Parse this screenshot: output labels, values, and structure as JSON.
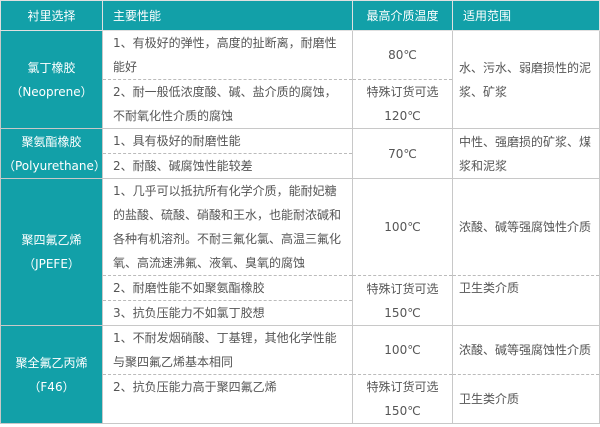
{
  "headers": [
    "衬里选择",
    "主要性能",
    "最高介质温度",
    "适用范围"
  ],
  "rows": [
    {
      "name": "氯丁橡胶",
      "code": "（Neoprene）",
      "props": [
        "1、有极好的弹性，高度的扯断离，耐磨性能好",
        "2、耐一般低浓度酸、碱、盐介质的腐蚀，不耐氧化性介质的腐蚀"
      ],
      "temp": [
        "80℃",
        "特殊订货可选",
        "120℃"
      ],
      "use": [
        "水、污水、弱磨损性的泥浆、矿浆"
      ]
    },
    {
      "name": "聚氨酯橡胶",
      "code": "（Polyurethane）",
      "props": [
        "1、具有极好的耐磨性能",
        "2、耐酸、碱腐蚀性能较差"
      ],
      "temp": [
        "70℃"
      ],
      "use": [
        "中性、强磨损的矿浆、煤浆和泥浆"
      ]
    },
    {
      "name": "聚四氟乙烯",
      "code": "（JPEFE）",
      "props": [
        "1、几乎可以抵抗所有化学介质，能耐妃糖的盐酸、硫酸、硝酸和王水，也能耐浓碱和各种有机溶剂。不耐三氟化氯、高温三氟化氧、高流速沸氟、液氧、臭氧的腐蚀",
        "2、耐磨性能不如聚氨酯橡胶",
        "3、抗负压能力不如氯丁胶想"
      ],
      "temp": [
        "100℃",
        "特殊订货可选",
        "150℃"
      ],
      "use": [
        "浓酸、碱等强腐蚀性介质",
        "卫生类介质"
      ]
    },
    {
      "name": "聚全氟乙丙烯",
      "code": "（F46）",
      "props": [
        "1、不耐发烟硝酸、丁基锂，其他化学性能与聚四氟乙烯基本相同",
        "2、抗负压能力高于聚四氟乙烯"
      ],
      "temp": [
        "100℃",
        "特殊订货可选",
        "150℃"
      ],
      "use": [
        "浓酸、碱等强腐蚀性介质",
        "卫生类介质"
      ]
    }
  ],
  "colors": {
    "header_bg": "#12a0a8",
    "text": "#555555",
    "border": "#c8c8c8"
  }
}
